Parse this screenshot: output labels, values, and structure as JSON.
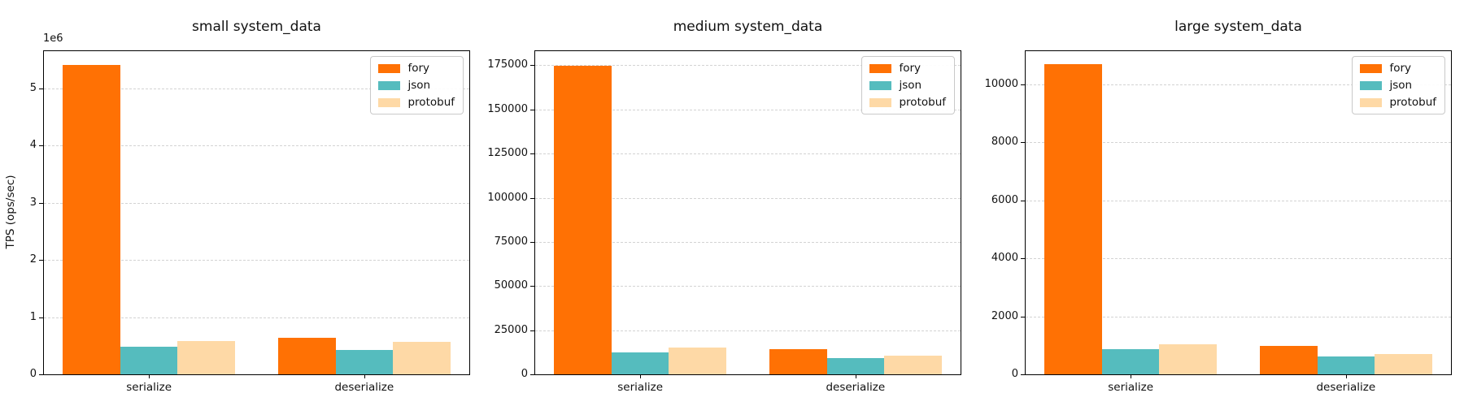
{
  "figure": {
    "background": "#ffffff"
  },
  "colors": {
    "fory": "#ff7104",
    "json": "#55bcbe",
    "protobuf": "#fed9a6",
    "grid": "#d3d3d3",
    "axis": "#000000"
  },
  "chart_data": [
    {
      "type": "bar",
      "title": "small system_data",
      "ylabel": "TPS (ops/sec)",
      "y_offset_label": "1e6",
      "xlabel": "",
      "categories": [
        "serialize",
        "deserialize"
      ],
      "series": [
        {
          "name": "fory",
          "values": [
            5410000,
            640000
          ]
        },
        {
          "name": "json",
          "values": [
            480000,
            430000
          ]
        },
        {
          "name": "protobuf",
          "values": [
            580000,
            570000
          ]
        }
      ],
      "ylim": [
        0,
        5650000
      ],
      "yticks": [
        0,
        1000000,
        2000000,
        3000000,
        4000000,
        5000000
      ],
      "ytick_labels": [
        "0",
        "1",
        "2",
        "3",
        "4",
        "5"
      ],
      "grid": true,
      "grid_style": "dashed",
      "legend_position": "upper right",
      "legend_entries": [
        "fory",
        "json",
        "protobuf"
      ]
    },
    {
      "type": "bar",
      "title": "medium system_data",
      "ylabel": "",
      "xlabel": "",
      "categories": [
        "serialize",
        "deserialize"
      ],
      "series": [
        {
          "name": "fory",
          "values": [
            174500,
            14300
          ]
        },
        {
          "name": "json",
          "values": [
            12400,
            9200
          ]
        },
        {
          "name": "protobuf",
          "values": [
            15000,
            10600
          ]
        }
      ],
      "ylim": [
        0,
        183000
      ],
      "yticks": [
        0,
        25000,
        50000,
        75000,
        100000,
        125000,
        150000,
        175000
      ],
      "ytick_labels": [
        "0",
        "25000",
        "50000",
        "75000",
        "100000",
        "125000",
        "150000",
        "175000"
      ],
      "grid": true,
      "grid_style": "dashed",
      "legend_position": "upper right",
      "legend_entries": [
        "fory",
        "json",
        "protobuf"
      ]
    },
    {
      "type": "bar",
      "title": "large system_data",
      "ylabel": "",
      "xlabel": "",
      "categories": [
        "serialize",
        "deserialize"
      ],
      "series": [
        {
          "name": "fory",
          "values": [
            10700,
            970
          ]
        },
        {
          "name": "json",
          "values": [
            880,
            620
          ]
        },
        {
          "name": "protobuf",
          "values": [
            1050,
            710
          ]
        }
      ],
      "ylim": [
        0,
        11150
      ],
      "yticks": [
        0,
        2000,
        4000,
        6000,
        8000,
        10000
      ],
      "ytick_labels": [
        "0",
        "2000",
        "4000",
        "6000",
        "8000",
        "10000"
      ],
      "grid": true,
      "grid_style": "dashed",
      "legend_position": "upper right",
      "legend_entries": [
        "fory",
        "json",
        "protobuf"
      ]
    }
  ]
}
